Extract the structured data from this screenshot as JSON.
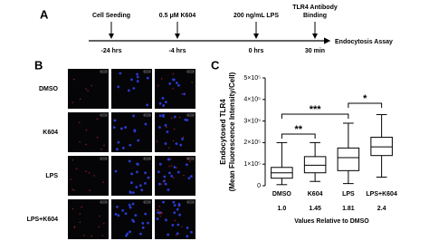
{
  "panel_a": {
    "letter": "A",
    "events": [
      {
        "label": [
          "Cell Seeding"
        ],
        "time": "-24 hrs"
      },
      {
        "label": [
          "0.5 μM K604"
        ],
        "time": "-4 hrs"
      },
      {
        "label": [
          "200 ng/mL LPS"
        ],
        "time": "0 hrs"
      },
      {
        "label": [
          "TLR4 Antibody",
          "Binding"
        ],
        "time": "30 min"
      }
    ],
    "endpoint": "Endocytosis Assay"
  },
  "panel_b": {
    "letter": "B",
    "rows": [
      "DMSO",
      "K604",
      "LPS",
      "LPS+K604"
    ]
  },
  "chart_data": {
    "type": "box",
    "letter": "C",
    "ylabel": [
      "Endocytosed TLR4",
      "(Mean Fluorescence Intensity/Cell)"
    ],
    "categories": [
      "DMSO",
      "K604",
      "LPS",
      "LPS+K604"
    ],
    "boxes": [
      {
        "min": 5000,
        "q1": 35000,
        "median": 60000,
        "q3": 85000,
        "max": 200000
      },
      {
        "min": 20000,
        "q1": 60000,
        "median": 95000,
        "q3": 135000,
        "max": 200000
      },
      {
        "min": 10000,
        "q1": 70000,
        "median": 130000,
        "q3": 175000,
        "max": 290000
      },
      {
        "min": 40000,
        "q1": 140000,
        "median": 180000,
        "q3": 225000,
        "max": 330000
      }
    ],
    "color": "#000000",
    "ylim": [
      0,
      500000
    ],
    "yticks": [
      0,
      {
        "value": 100000,
        "label": "1×10⁵"
      },
      {
        "value": 200000,
        "label": "2×10⁵"
      },
      {
        "value": 300000,
        "label": "3×10⁵"
      },
      {
        "value": 400000,
        "label": "4×10⁵"
      },
      {
        "value": 500000,
        "label": "5×10⁵"
      }
    ],
    "annotations": [
      "**",
      "***",
      "*"
    ],
    "relative": {
      "label": "Values Relative to DMSO",
      "values": [
        1,
        1.45,
        1.81,
        2.4
      ],
      "value_labels": [
        "1.0",
        "1.45",
        "1.81",
        "2.4"
      ]
    }
  }
}
